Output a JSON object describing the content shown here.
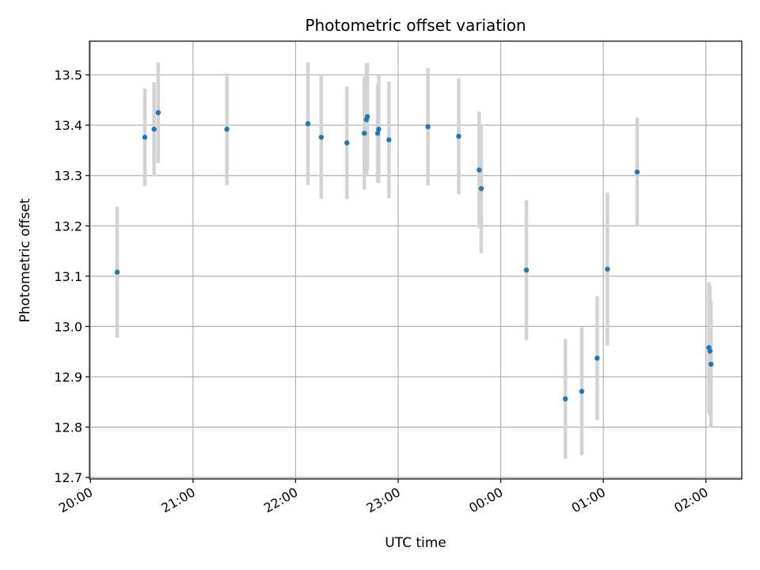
{
  "chart_data": {
    "type": "scatter",
    "title": "Photometric offset variation",
    "xlabel": "UTC time",
    "ylabel": "Photometric offset",
    "x_unit": "hours since 20:00 UTC",
    "xlim": [
      -0.01,
      6.35
    ],
    "ylim": [
      12.697,
      13.567
    ],
    "xticks": [
      {
        "value": 0,
        "label": "20:00"
      },
      {
        "value": 1,
        "label": "21:00"
      },
      {
        "value": 2,
        "label": "22:00"
      },
      {
        "value": 3,
        "label": "23:00"
      },
      {
        "value": 4,
        "label": "00:00"
      },
      {
        "value": 5,
        "label": "01:00"
      },
      {
        "value": 6,
        "label": "02:00"
      }
    ],
    "yticks": [
      12.7,
      12.8,
      12.9,
      13.0,
      13.1,
      13.2,
      13.3,
      13.4,
      13.5
    ],
    "grid": true,
    "marker_color": "#1f77b4",
    "errorbar_color": "#d3d3d3",
    "points": [
      {
        "x": 0.26,
        "y": 13.108,
        "err": 0.13
      },
      {
        "x": 0.53,
        "y": 13.376,
        "err": 0.097
      },
      {
        "x": 0.62,
        "y": 13.392,
        "err": 0.093
      },
      {
        "x": 0.66,
        "y": 13.425,
        "err": 0.1
      },
      {
        "x": 1.33,
        "y": 13.392,
        "err": 0.111
      },
      {
        "x": 2.12,
        "y": 13.403,
        "err": 0.122
      },
      {
        "x": 2.25,
        "y": 13.376,
        "err": 0.122
      },
      {
        "x": 2.5,
        "y": 13.365,
        "err": 0.112
      },
      {
        "x": 2.67,
        "y": 13.384,
        "err": 0.112
      },
      {
        "x": 2.69,
        "y": 13.411,
        "err": 0.112
      },
      {
        "x": 2.7,
        "y": 13.417,
        "err": 0.107
      },
      {
        "x": 2.8,
        "y": 13.384,
        "err": 0.098
      },
      {
        "x": 2.81,
        "y": 13.392,
        "err": 0.107
      },
      {
        "x": 2.91,
        "y": 13.371,
        "err": 0.116
      },
      {
        "x": 3.29,
        "y": 13.397,
        "err": 0.117
      },
      {
        "x": 3.59,
        "y": 13.378,
        "err": 0.115
      },
      {
        "x": 3.79,
        "y": 13.311,
        "err": 0.116
      },
      {
        "x": 3.81,
        "y": 13.274,
        "err": 0.128
      },
      {
        "x": 4.25,
        "y": 13.112,
        "err": 0.139
      },
      {
        "x": 4.63,
        "y": 12.856,
        "err": 0.119
      },
      {
        "x": 4.79,
        "y": 12.871,
        "err": 0.127
      },
      {
        "x": 4.94,
        "y": 12.937,
        "err": 0.123
      },
      {
        "x": 5.04,
        "y": 13.114,
        "err": 0.152
      },
      {
        "x": 5.33,
        "y": 13.307,
        "err": 0.108
      },
      {
        "x": 6.03,
        "y": 12.958,
        "err": 0.13
      },
      {
        "x": 6.04,
        "y": 12.951,
        "err": 0.13
      },
      {
        "x": 6.05,
        "y": 12.925,
        "err": 0.126
      }
    ]
  }
}
